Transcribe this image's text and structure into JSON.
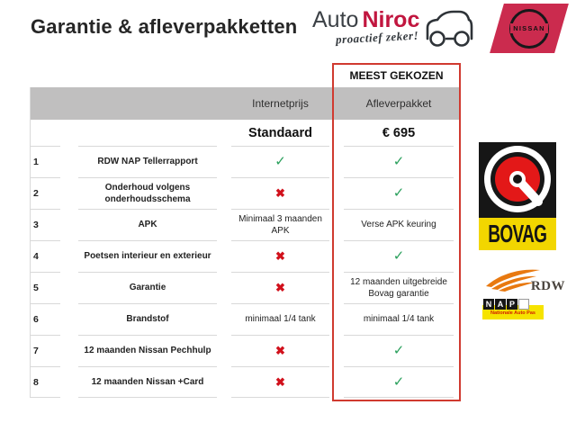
{
  "header": {
    "title": "Garantie & afleverpakketten",
    "dealer_logo": {
      "word1": "Auto",
      "word2": "Niroc",
      "tagline": "proactief zeker!"
    },
    "nissan_wordmark": "NISSAN"
  },
  "table": {
    "badge": "MEEST GEKOZEN",
    "columns": {
      "internet": "Internetprijs",
      "aflever": "Afleverpakket"
    },
    "subheader": {
      "internet": "Standaard",
      "aflever": "€ 695"
    },
    "rows": [
      {
        "num": "1",
        "label": "RDW NAP Tellerrapport",
        "internet": "check",
        "aflever": "check"
      },
      {
        "num": "2",
        "label": "Onderhoud volgens onderhoudsschema",
        "internet": "cross",
        "aflever": "check"
      },
      {
        "num": "3",
        "label": "APK",
        "internet": "Minimaal 3 maanden APK",
        "aflever": "Verse APK keuring"
      },
      {
        "num": "4",
        "label": "Poetsen interieur en exterieur",
        "internet": "cross",
        "aflever": "check"
      },
      {
        "num": "5",
        "label": "Garantie",
        "internet": "cross",
        "aflever": "12 maanden uitgebreide Bovag garantie"
      },
      {
        "num": "6",
        "label": "Brandstof",
        "internet": "minimaal 1/4 tank",
        "aflever": "minimaal 1/4 tank"
      },
      {
        "num": "7",
        "label": "12 maanden Nissan Pechhulp",
        "internet": "cross",
        "aflever": "check"
      },
      {
        "num": "8",
        "label": "12 maanden Nissan +Card",
        "internet": "cross",
        "aflever": "check"
      }
    ]
  },
  "icons": {
    "check": "✓",
    "cross": "✖"
  },
  "logos": {
    "bovag": "BOVAG",
    "rdw": "RDW",
    "nap": {
      "letters": [
        "N",
        "A",
        "P",
        ""
      ],
      "caption": "Nationale Auto Pas"
    }
  },
  "colors": {
    "highlight_border_red": "#d03a30",
    "check_green": "#2aa05c",
    "cross_red": "#d1111c",
    "header_gray": "#c0bfbf",
    "row_line_gray": "#d9d9d9",
    "nissan_red": "#cb2b4e",
    "niroc_red": "#c1163f",
    "bovag_yellow": "#f2d600",
    "bovag_red": "#e31818",
    "rdw_orange": "#e87910",
    "nap_yellow": "#f6e300"
  }
}
